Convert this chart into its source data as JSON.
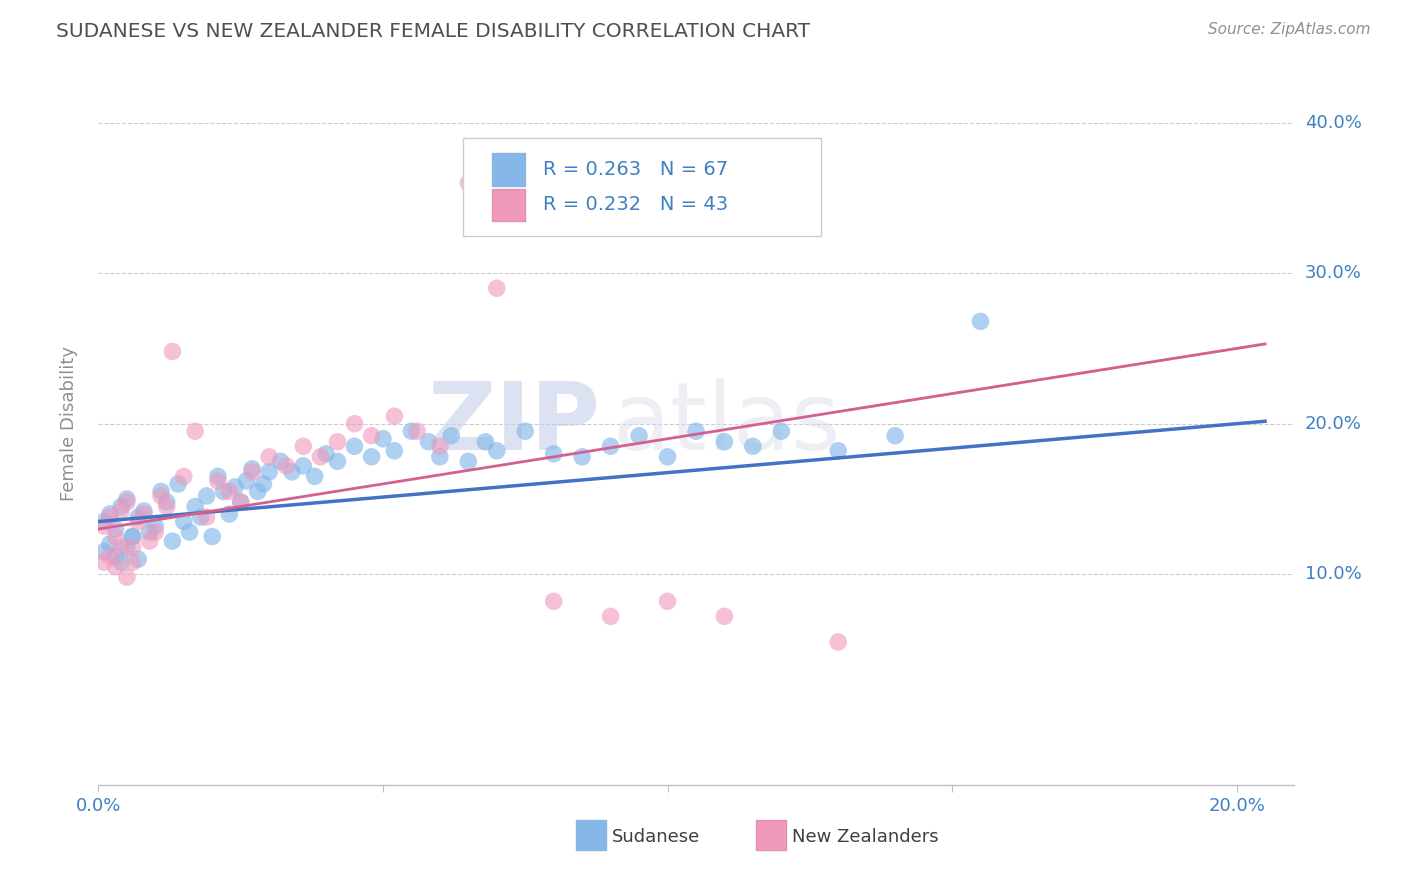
{
  "title": "SUDANESE VS NEW ZEALANDER FEMALE DISABILITY CORRELATION CHART",
  "source": "Source: ZipAtlas.com",
  "ylabel": "Female Disability",
  "xlim": [
    0.0,
    0.21
  ],
  "ylim": [
    -0.04,
    0.44
  ],
  "xticks": [
    0.0,
    0.05,
    0.1,
    0.15,
    0.2
  ],
  "xtick_labels": [
    "0.0%",
    "",
    "",
    "",
    "20.0%"
  ],
  "yticks": [
    0.1,
    0.2,
    0.3,
    0.4
  ],
  "ytick_labels": [
    "10.0%",
    "20.0%",
    "30.0%",
    "40.0%"
  ],
  "blue_color": "#85b8e8",
  "pink_color": "#f099bb",
  "blue_line_color": "#4472c4",
  "pink_line_color": "#d46090",
  "watermark_zip": "ZIP",
  "watermark_atlas": "atlas",
  "background_color": "#ffffff",
  "grid_color": "#c8c8c8",
  "title_color": "#505050",
  "axis_label_color": "#909090",
  "tick_color": "#4080c0",
  "source_color": "#909090",
  "sudanese_x": [
    0.001,
    0.002,
    0.003,
    0.004,
    0.005,
    0.006,
    0.007,
    0.008,
    0.009,
    0.01,
    0.011,
    0.012,
    0.013,
    0.014,
    0.015,
    0.016,
    0.017,
    0.018,
    0.019,
    0.02,
    0.021,
    0.022,
    0.023,
    0.024,
    0.025,
    0.026,
    0.027,
    0.028,
    0.029,
    0.03,
    0.032,
    0.034,
    0.036,
    0.038,
    0.04,
    0.042,
    0.045,
    0.048,
    0.05,
    0.052,
    0.055,
    0.058,
    0.06,
    0.062,
    0.065,
    0.068,
    0.07,
    0.075,
    0.08,
    0.085,
    0.09,
    0.095,
    0.1,
    0.105,
    0.11,
    0.115,
    0.12,
    0.13,
    0.14,
    0.155,
    0.001,
    0.002,
    0.003,
    0.004,
    0.005,
    0.006,
    0.007
  ],
  "sudanese_y": [
    0.135,
    0.14,
    0.13,
    0.145,
    0.15,
    0.125,
    0.138,
    0.142,
    0.128,
    0.132,
    0.155,
    0.148,
    0.122,
    0.16,
    0.135,
    0.128,
    0.145,
    0.138,
    0.152,
    0.125,
    0.165,
    0.155,
    0.14,
    0.158,
    0.148,
    0.162,
    0.17,
    0.155,
    0.16,
    0.168,
    0.175,
    0.168,
    0.172,
    0.165,
    0.18,
    0.175,
    0.185,
    0.178,
    0.19,
    0.182,
    0.195,
    0.188,
    0.178,
    0.192,
    0.175,
    0.188,
    0.182,
    0.195,
    0.18,
    0.178,
    0.185,
    0.192,
    0.178,
    0.195,
    0.188,
    0.185,
    0.195,
    0.182,
    0.192,
    0.268,
    0.115,
    0.12,
    0.112,
    0.108,
    0.118,
    0.125,
    0.11
  ],
  "nz_x": [
    0.001,
    0.002,
    0.003,
    0.004,
    0.005,
    0.006,
    0.007,
    0.008,
    0.009,
    0.01,
    0.011,
    0.012,
    0.013,
    0.015,
    0.017,
    0.019,
    0.021,
    0.023,
    0.025,
    0.027,
    0.03,
    0.033,
    0.036,
    0.039,
    0.042,
    0.045,
    0.048,
    0.052,
    0.056,
    0.06,
    0.001,
    0.002,
    0.003,
    0.004,
    0.005,
    0.006,
    0.065,
    0.07,
    0.08,
    0.09,
    0.1,
    0.11,
    0.13
  ],
  "nz_y": [
    0.132,
    0.138,
    0.125,
    0.142,
    0.148,
    0.118,
    0.135,
    0.14,
    0.122,
    0.128,
    0.152,
    0.145,
    0.248,
    0.165,
    0.195,
    0.138,
    0.162,
    0.155,
    0.148,
    0.168,
    0.178,
    0.172,
    0.185,
    0.178,
    0.188,
    0.2,
    0.192,
    0.205,
    0.195,
    0.185,
    0.108,
    0.112,
    0.105,
    0.118,
    0.098,
    0.108,
    0.36,
    0.29,
    0.082,
    0.072,
    0.082,
    0.072,
    0.055
  ]
}
